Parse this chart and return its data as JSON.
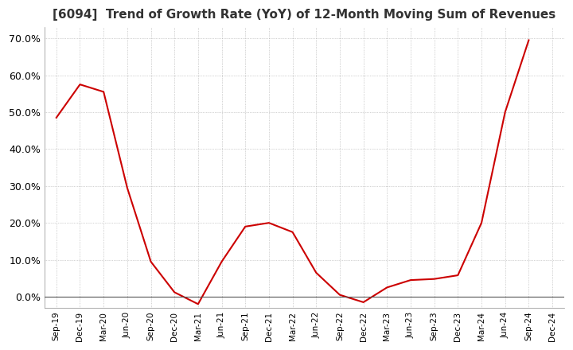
{
  "title": "[6094]  Trend of Growth Rate (YoY) of 12-Month Moving Sum of Revenues",
  "title_fontsize": 11,
  "line_color": "#cc0000",
  "background_color": "#ffffff",
  "plot_bg_color": "#ffffff",
  "ylim": [
    -0.03,
    0.73
  ],
  "yticks": [
    0.0,
    0.1,
    0.2,
    0.3,
    0.4,
    0.5,
    0.6,
    0.7
  ],
  "x_labels": [
    "Sep-19",
    "Dec-19",
    "Mar-20",
    "Jun-20",
    "Sep-20",
    "Dec-20",
    "Mar-21",
    "Jun-21",
    "Sep-21",
    "Dec-21",
    "Mar-22",
    "Jun-22",
    "Sep-22",
    "Dec-22",
    "Mar-23",
    "Jun-23",
    "Sep-23",
    "Dec-23",
    "Mar-24",
    "Jun-24",
    "Sep-24",
    "Dec-24"
  ],
  "y_values": [
    0.485,
    0.575,
    0.555,
    0.295,
    0.095,
    0.012,
    -0.02,
    0.095,
    0.19,
    0.2,
    0.175,
    0.065,
    0.005,
    -0.015,
    0.025,
    0.045,
    0.048,
    0.058,
    0.2,
    0.5,
    0.695,
    null
  ]
}
